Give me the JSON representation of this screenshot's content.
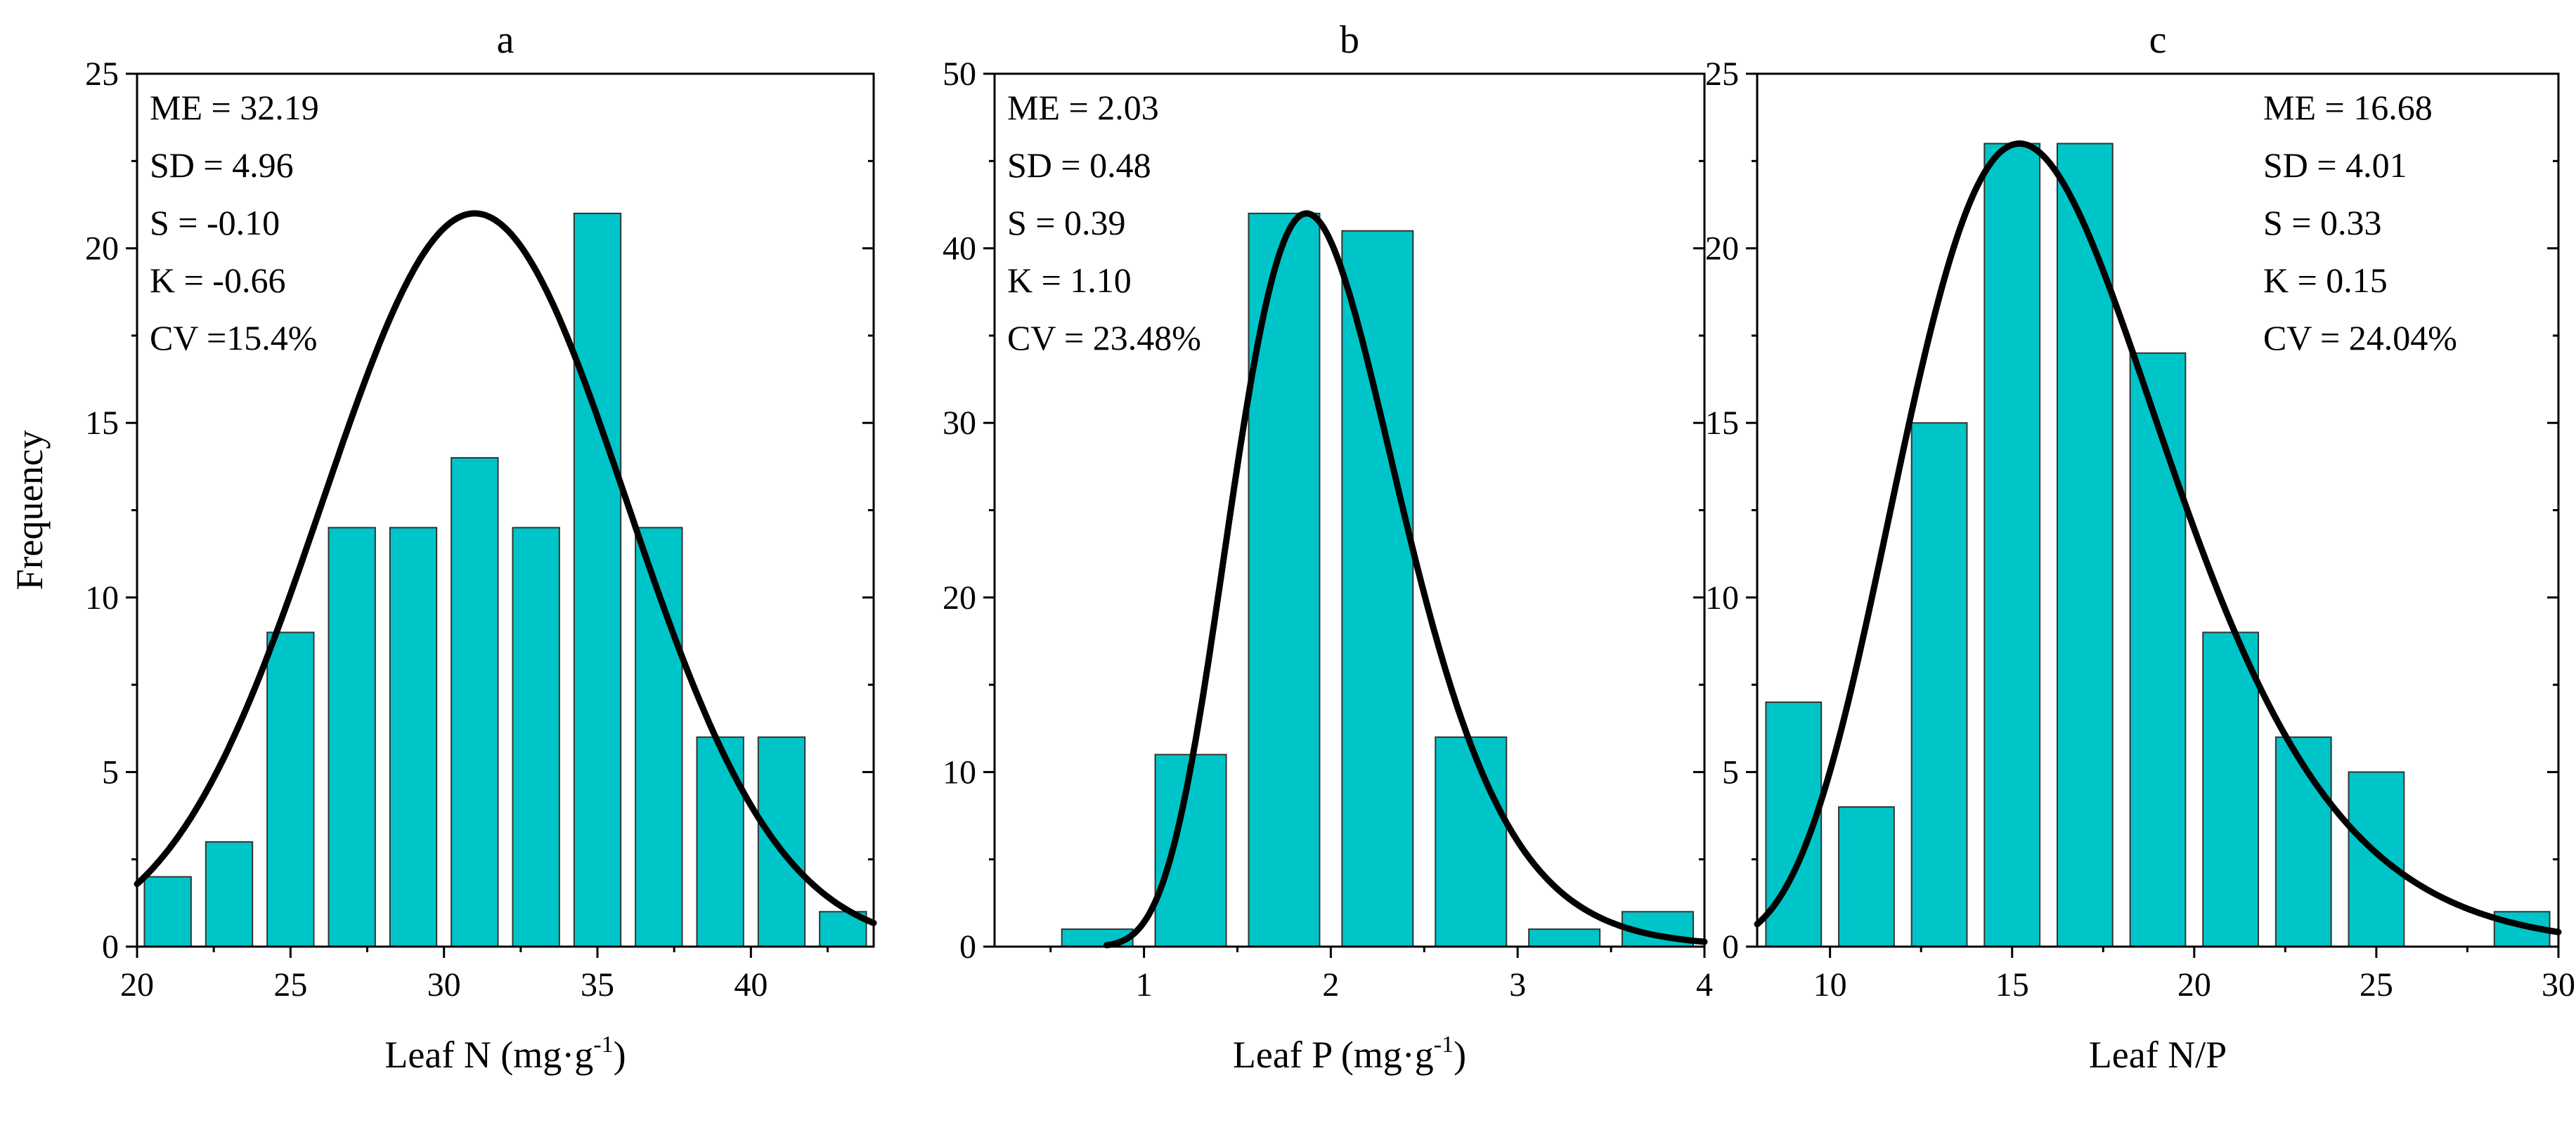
{
  "colors": {
    "bar_fill": "#00C5C8",
    "bar_stroke": "#333333",
    "curve": "#000000",
    "axis": "#000000"
  },
  "chart_data": [
    {
      "type": "bar",
      "panel_label": "a",
      "title": "a",
      "ylabel": "Frequency",
      "xlabel": "Leaf N (mg·g",
      "xlabel_sup": "-1",
      "xlabel_end": ")",
      "xlim": [
        20,
        44
      ],
      "ylim": [
        0,
        25
      ],
      "xticks": [
        20,
        25,
        30,
        35,
        40
      ],
      "yticks": [
        0,
        5,
        10,
        15,
        20,
        25
      ],
      "bin_width": 2,
      "bins": [
        {
          "center": 21,
          "count": 2
        },
        {
          "center": 23,
          "count": 3
        },
        {
          "center": 25,
          "count": 9
        },
        {
          "center": 27,
          "count": 12
        },
        {
          "center": 29,
          "count": 12
        },
        {
          "center": 31,
          "count": 14
        },
        {
          "center": 33,
          "count": 12
        },
        {
          "center": 35,
          "count": 21
        },
        {
          "center": 37,
          "count": 12
        },
        {
          "center": 39,
          "count": 6
        },
        {
          "center": 41,
          "count": 6
        },
        {
          "center": 43,
          "count": 1
        }
      ],
      "curve": {
        "type": "normal",
        "peak_x": 31.0,
        "peak_y": 21.0,
        "sd": 4.96
      },
      "stats_position": "top-left",
      "stats": [
        "ME = 32.19",
        "SD = 4.96",
        "S = -0.10",
        "K = -0.66",
        "CV =15.4%"
      ]
    },
    {
      "type": "bar",
      "panel_label": "b",
      "title": "b",
      "ylabel": "",
      "xlabel": "Leaf P (mg·g",
      "xlabel_sup": "-1",
      "xlabel_end": ")",
      "xlim": [
        0.2,
        4.0
      ],
      "ylim": [
        0,
        50
      ],
      "xticks": [
        1,
        2,
        3,
        4
      ],
      "yticks": [
        0,
        10,
        20,
        30,
        40,
        50
      ],
      "bin_width": 0.5,
      "bins": [
        {
          "center": 0.75,
          "count": 1
        },
        {
          "center": 1.25,
          "count": 11
        },
        {
          "center": 1.75,
          "count": 42
        },
        {
          "center": 2.25,
          "count": 41
        },
        {
          "center": 2.75,
          "count": 12
        },
        {
          "center": 3.25,
          "count": 1
        },
        {
          "center": 3.75,
          "count": 2
        }
      ],
      "curve": {
        "type": "lognormal",
        "mode_x": 1.87,
        "peak_y": 42.0,
        "sigma": 0.24,
        "x_start": 0.8
      },
      "stats_position": "top-left",
      "stats": [
        "ME = 2.03",
        "SD = 0.48",
        "S = 0.39",
        "K = 1.10",
        "CV = 23.48%"
      ]
    },
    {
      "type": "bar",
      "panel_label": "c",
      "title": "c",
      "ylabel": "",
      "xlabel": "Leaf N/P",
      "xlabel_sup": "",
      "xlabel_end": "",
      "xlim": [
        8,
        30
      ],
      "ylim": [
        0,
        25
      ],
      "xticks": [
        10,
        15,
        20,
        25,
        30
      ],
      "yticks": [
        0,
        5,
        10,
        15,
        20,
        25
      ],
      "bin_width": 2,
      "bins": [
        {
          "center": 9,
          "count": 7
        },
        {
          "center": 11,
          "count": 4
        },
        {
          "center": 13,
          "count": 15
        },
        {
          "center": 15,
          "count": 23
        },
        {
          "center": 17,
          "count": 23
        },
        {
          "center": 19,
          "count": 17
        },
        {
          "center": 21,
          "count": 9
        },
        {
          "center": 23,
          "count": 6
        },
        {
          "center": 25,
          "count": 5
        },
        {
          "center": 29,
          "count": 1
        }
      ],
      "curve": {
        "type": "lognormal",
        "mode_x": 15.2,
        "peak_y": 23.0,
        "sigma": 0.24,
        "x_start": 8.0
      },
      "stats_position": "top-right",
      "stats": [
        "ME = 16.68",
        "SD = 4.01",
        "S = 0.33",
        "K = 0.15",
        "CV = 24.04%"
      ]
    }
  ]
}
